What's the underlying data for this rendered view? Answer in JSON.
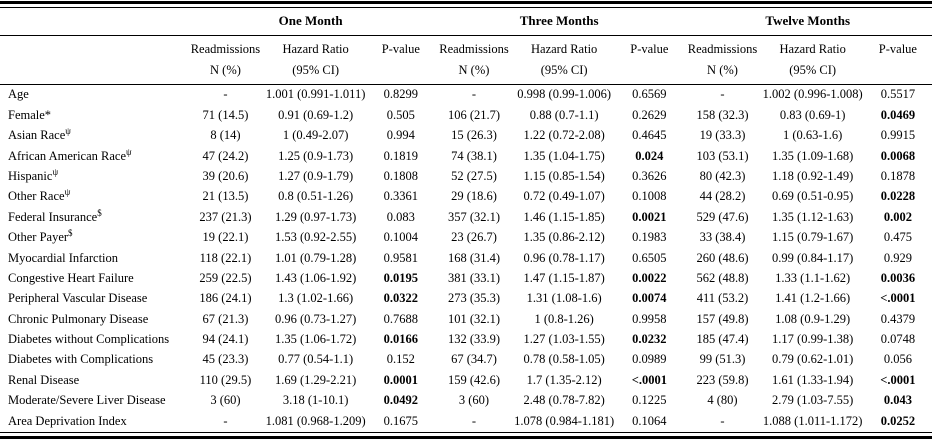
{
  "header": {
    "months": [
      "One Month",
      "Three Months",
      "Twelve Months"
    ],
    "cols": {
      "readm1": "Readmissions",
      "readm2": "N (%)",
      "hr1": "Hazard Ratio",
      "hr2": "(95% CI)",
      "p": "P-value"
    }
  },
  "rows": [
    {
      "label": "Age",
      "sup": "",
      "groups": [
        {
          "n": "-",
          "hr": "1.001 (0.991-1.011)",
          "p": "0.8299",
          "sig": false
        },
        {
          "n": "-",
          "hr": "0.998 (0.99-1.006)",
          "p": "0.6569",
          "sig": false
        },
        {
          "n": "-",
          "hr": "1.002 (0.996-1.008)",
          "p": "0.5517",
          "sig": false
        }
      ]
    },
    {
      "label": "Female*",
      "sup": "",
      "groups": [
        {
          "n": "71 (14.5)",
          "hr": "0.91 (0.69-1.2)",
          "p": "0.505",
          "sig": false
        },
        {
          "n": "106 (21.7)",
          "hr": "0.88 (0.7-1.1)",
          "p": "0.2629",
          "sig": false
        },
        {
          "n": "158 (32.3)",
          "hr": "0.83 (0.69-1)",
          "p": "0.0469",
          "sig": true
        }
      ]
    },
    {
      "label": "Asian Race",
      "sup": "ψ",
      "groups": [
        {
          "n": "8 (14)",
          "hr": "1 (0.49-2.07)",
          "p": "0.994",
          "sig": false
        },
        {
          "n": "15 (26.3)",
          "hr": "1.22 (0.72-2.08)",
          "p": "0.4645",
          "sig": false
        },
        {
          "n": "19 (33.3)",
          "hr": "1 (0.63-1.6)",
          "p": "0.9915",
          "sig": false
        }
      ]
    },
    {
      "label": "African American Race",
      "sup": "ψ",
      "groups": [
        {
          "n": "47 (24.2)",
          "hr": "1.25 (0.9-1.73)",
          "p": "0.1819",
          "sig": false
        },
        {
          "n": "74 (38.1)",
          "hr": "1.35 (1.04-1.75)",
          "p": "0.024",
          "sig": true
        },
        {
          "n": "103 (53.1)",
          "hr": "1.35 (1.09-1.68)",
          "p": "0.0068",
          "sig": true
        }
      ]
    },
    {
      "label": "Hispanic",
      "sup": "ψ",
      "groups": [
        {
          "n": "39 (20.6)",
          "hr": "1.27 (0.9-1.79)",
          "p": "0.1808",
          "sig": false
        },
        {
          "n": "52 (27.5)",
          "hr": "1.15 (0.85-1.54)",
          "p": "0.3626",
          "sig": false
        },
        {
          "n": "80 (42.3)",
          "hr": "1.18 (0.92-1.49)",
          "p": "0.1878",
          "sig": false
        }
      ]
    },
    {
      "label": "Other Race",
      "sup": "ψ",
      "groups": [
        {
          "n": "21 (13.5)",
          "hr": "0.8 (0.51-1.26)",
          "p": "0.3361",
          "sig": false
        },
        {
          "n": "29 (18.6)",
          "hr": "0.72 (0.49-1.07)",
          "p": "0.1008",
          "sig": false
        },
        {
          "n": "44 (28.2)",
          "hr": "0.69 (0.51-0.95)",
          "p": "0.0228",
          "sig": true
        }
      ]
    },
    {
      "label": "Federal Insurance",
      "sup": "$",
      "groups": [
        {
          "n": "237 (21.3)",
          "hr": "1.29 (0.97-1.73)",
          "p": "0.083",
          "sig": false
        },
        {
          "n": "357 (32.1)",
          "hr": "1.46 (1.15-1.85)",
          "p": "0.0021",
          "sig": true
        },
        {
          "n": "529 (47.6)",
          "hr": "1.35 (1.12-1.63)",
          "p": "0.002",
          "sig": true
        }
      ]
    },
    {
      "label": "Other Payer",
      "sup": "$",
      "groups": [
        {
          "n": "19 (22.1)",
          "hr": "1.53 (0.92-2.55)",
          "p": "0.1004",
          "sig": false
        },
        {
          "n": "23 (26.7)",
          "hr": "1.35 (0.86-2.12)",
          "p": "0.1983",
          "sig": false
        },
        {
          "n": "33 (38.4)",
          "hr": "1.15 (0.79-1.67)",
          "p": "0.475",
          "sig": false
        }
      ]
    },
    {
      "label": "Myocardial Infarction",
      "sup": "",
      "groups": [
        {
          "n": "118 (22.1)",
          "hr": "1.01 (0.79-1.28)",
          "p": "0.9581",
          "sig": false
        },
        {
          "n": "168 (31.4)",
          "hr": "0.96 (0.78-1.17)",
          "p": "0.6505",
          "sig": false
        },
        {
          "n": "260 (48.6)",
          "hr": "0.99 (0.84-1.17)",
          "p": "0.929",
          "sig": false
        }
      ]
    },
    {
      "label": "Congestive Heart Failure",
      "sup": "",
      "groups": [
        {
          "n": "259 (22.5)",
          "hr": "1.43 (1.06-1.92)",
          "p": "0.0195",
          "sig": true
        },
        {
          "n": "381 (33.1)",
          "hr": "1.47 (1.15-1.87)",
          "p": "0.0022",
          "sig": true
        },
        {
          "n": "562 (48.8)",
          "hr": "1.33 (1.1-1.62)",
          "p": "0.0036",
          "sig": true
        }
      ]
    },
    {
      "label": "Peripheral Vascular Disease",
      "sup": "",
      "groups": [
        {
          "n": "186 (24.1)",
          "hr": "1.3 (1.02-1.66)",
          "p": "0.0322",
          "sig": true
        },
        {
          "n": "273 (35.3)",
          "hr": "1.31 (1.08-1.6)",
          "p": "0.0074",
          "sig": true
        },
        {
          "n": "411 (53.2)",
          "hr": "1.41 (1.2-1.66)",
          "p": "<.0001",
          "sig": true
        }
      ]
    },
    {
      "label": "Chronic Pulmonary Disease",
      "sup": "",
      "groups": [
        {
          "n": "67 (21.3)",
          "hr": "0.96 (0.73-1.27)",
          "p": "0.7688",
          "sig": false
        },
        {
          "n": "101 (32.1)",
          "hr": "1 (0.8-1.26)",
          "p": "0.9958",
          "sig": false
        },
        {
          "n": "157 (49.8)",
          "hr": "1.08 (0.9-1.29)",
          "p": "0.4379",
          "sig": false
        }
      ]
    },
    {
      "label": "Diabetes without Complications",
      "sup": "",
      "groups": [
        {
          "n": "94 (24.1)",
          "hr": "1.35 (1.06-1.72)",
          "p": "0.0166",
          "sig": true
        },
        {
          "n": "132 (33.9)",
          "hr": "1.27 (1.03-1.55)",
          "p": "0.0232",
          "sig": true
        },
        {
          "n": "185 (47.4)",
          "hr": "1.17 (0.99-1.38)",
          "p": "0.0748",
          "sig": false
        }
      ]
    },
    {
      "label": "Diabetes with Complications",
      "sup": "",
      "groups": [
        {
          "n": "45 (23.3)",
          "hr": "0.77 (0.54-1.1)",
          "p": "0.152",
          "sig": false
        },
        {
          "n": "67 (34.7)",
          "hr": "0.78 (0.58-1.05)",
          "p": "0.0989",
          "sig": false
        },
        {
          "n": "99 (51.3)",
          "hr": "0.79 (0.62-1.01)",
          "p": "0.056",
          "sig": false
        }
      ]
    },
    {
      "label": "Renal Disease",
      "sup": "",
      "groups": [
        {
          "n": "110 (29.5)",
          "hr": "1.69 (1.29-2.21)",
          "p": "0.0001",
          "sig": true
        },
        {
          "n": "159 (42.6)",
          "hr": "1.7 (1.35-2.12)",
          "p": "<.0001",
          "sig": true
        },
        {
          "n": "223 (59.8)",
          "hr": "1.61 (1.33-1.94)",
          "p": "<.0001",
          "sig": true
        }
      ]
    },
    {
      "label": "Moderate/Severe Liver Disease",
      "sup": "",
      "groups": [
        {
          "n": "3 (60)",
          "hr": "3.18 (1-10.1)",
          "p": "0.0492",
          "sig": true
        },
        {
          "n": "3 (60)",
          "hr": "2.48 (0.78-7.82)",
          "p": "0.1225",
          "sig": false
        },
        {
          "n": "4 (80)",
          "hr": "2.79 (1.03-7.55)",
          "p": "0.043",
          "sig": true
        }
      ]
    },
    {
      "label": "Area Deprivation Index",
      "sup": "",
      "groups": [
        {
          "n": "-",
          "hr": "1.081 (0.968-1.209)",
          "p": "0.1675",
          "sig": false
        },
        {
          "n": "-",
          "hr": "1.078 (0.984-1.181)",
          "p": "0.1064",
          "sig": false
        },
        {
          "n": "-",
          "hr": "1.088 (1.011-1.172)",
          "p": "0.0252",
          "sig": true
        }
      ]
    }
  ]
}
